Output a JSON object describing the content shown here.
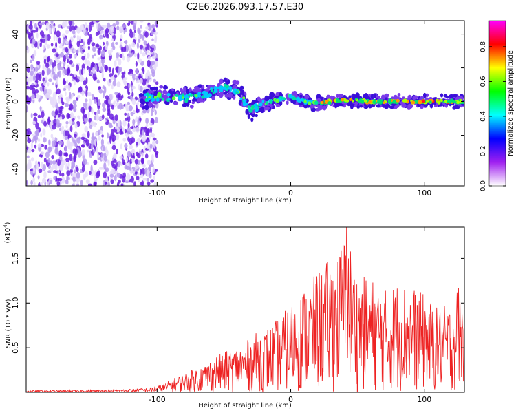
{
  "title": "C2E6.2026.093.17.57.E30",
  "chart_data": [
    {
      "type": "heatmap",
      "name": "spectrogram",
      "xlabel": "Height of straight line (km)",
      "ylabel": "Frequency (Hz)",
      "xlim": [
        -198,
        130
      ],
      "ylim": [
        -50,
        48
      ],
      "x_ticks": [
        -100,
        0,
        100
      ],
      "x_tick_labels": [
        "-100",
        "0",
        "100"
      ],
      "y_ticks": [
        -40,
        -20,
        0,
        20,
        40
      ],
      "y_tick_labels": [
        "-40",
        "-20",
        "0",
        "20",
        "40"
      ],
      "noise_region_x": [
        -198,
        -100
      ],
      "signal_track": [
        {
          "x": -110,
          "f": 2
        },
        {
          "x": -95,
          "f": 3
        },
        {
          "x": -80,
          "f": 2
        },
        {
          "x": -65,
          "f": 4
        },
        {
          "x": -50,
          "f": 8
        },
        {
          "x": -40,
          "f": 6
        },
        {
          "x": -30,
          "f": -5
        },
        {
          "x": -20,
          "f": -1
        },
        {
          "x": -10,
          "f": 1
        },
        {
          "x": 0,
          "f": 3
        },
        {
          "x": 10,
          "f": 0
        },
        {
          "x": 20,
          "f": -1
        },
        {
          "x": 40,
          "f": 1
        },
        {
          "x": 60,
          "f": 0
        },
        {
          "x": 80,
          "f": 0
        },
        {
          "x": 100,
          "f": 0
        },
        {
          "x": 130,
          "f": 0
        }
      ],
      "colorbar": {
        "label": "Normalized spectral amplitude",
        "range": [
          0.0,
          0.95
        ],
        "ticks": [
          0.0,
          0.2,
          0.4,
          0.6,
          0.8
        ],
        "tick_labels": [
          "0.0",
          "0.2",
          "0.4",
          "0.6",
          "0.8"
        ],
        "colors": [
          "#ffffff",
          "#a020f0",
          "#0000ff",
          "#00ffff",
          "#00ff00",
          "#ffff00",
          "#ff0000",
          "#ff00ff"
        ]
      }
    },
    {
      "type": "line",
      "name": "snr",
      "xlabel": "Height of straight line (km)",
      "ylabel": "SNR (10 * v/v)",
      "scale_label": "(x10",
      "scale_exponent": "4",
      "xlim": [
        -198,
        130
      ],
      "ylim": [
        0,
        1.85
      ],
      "x_ticks": [
        -100,
        0,
        100
      ],
      "x_tick_labels": [
        "-100",
        "0",
        "100"
      ],
      "y_ticks": [
        0.5,
        1.0,
        1.5
      ],
      "y_tick_labels": [
        "0.5",
        "1.0",
        "1.5"
      ],
      "color": "#ee2222",
      "envelope": {
        "x": [
          -198,
          -130,
          -105,
          -95,
          -85,
          -75,
          -65,
          -55,
          -45,
          -35,
          -25,
          -15,
          -5,
          5,
          15,
          25,
          35,
          42,
          50,
          60,
          70,
          80,
          90,
          100,
          110,
          120,
          126,
          130
        ],
        "y": [
          0.02,
          0.03,
          0.05,
          0.1,
          0.18,
          0.25,
          0.32,
          0.42,
          0.48,
          0.55,
          0.68,
          0.75,
          0.9,
          1.1,
          1.25,
          1.45,
          1.55,
          1.85,
          1.3,
          1.3,
          1.15,
          1.25,
          1.2,
          1.1,
          0.95,
          1.0,
          1.25,
          1.0
        ]
      },
      "peak": {
        "x": 42,
        "y": 1.85
      }
    }
  ]
}
